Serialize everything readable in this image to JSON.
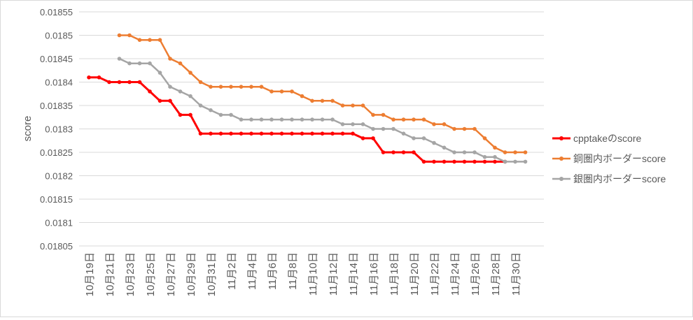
{
  "chart_data": {
    "type": "line",
    "title": "",
    "xlabel": "",
    "ylabel": "score",
    "ylim": [
      0.01805,
      0.01855
    ],
    "yticks": [
      "0.01805",
      "0.0181",
      "0.01815",
      "0.0182",
      "0.01825",
      "0.0183",
      "0.01835",
      "0.0184",
      "0.01845",
      "0.0185",
      "0.01855"
    ],
    "x": [
      "10月19日",
      "10月20日",
      "10月21日",
      "10月22日",
      "10月23日",
      "10月24日",
      "10月25日",
      "10月26日",
      "10月27日",
      "10月28日",
      "10月29日",
      "10月30日",
      "10月31日",
      "11月1日",
      "11月2日",
      "11月3日",
      "11月4日",
      "11月5日",
      "11月6日",
      "11月7日",
      "11月8日",
      "11月9日",
      "11月10日",
      "11月11日",
      "11月12日",
      "11月13日",
      "11月14日",
      "11月15日",
      "11月16日",
      "11月17日",
      "11月18日",
      "11月19日",
      "11月20日",
      "11月21日",
      "11月22日",
      "11月23日",
      "11月24日",
      "11月25日",
      "11月26日",
      "11月27日",
      "11月28日",
      "11月29日",
      "11月30日",
      "12月1日"
    ],
    "xtick_labels": [
      "10月19日",
      "10月21日",
      "10月23日",
      "10月25日",
      "10月27日",
      "10月29日",
      "10月31日",
      "11月2日",
      "11月4日",
      "11月6日",
      "11月8日",
      "11月10日",
      "11月12日",
      "11月14日",
      "11月16日",
      "11月18日",
      "11月20日",
      "11月22日",
      "11月24日",
      "11月26日",
      "11月28日",
      "11月30日"
    ],
    "grid": "horizontal",
    "legend": "right",
    "series": [
      {
        "name": "cpptakeのscore",
        "color": "#ff0000",
        "values": [
          0.01841,
          0.01841,
          0.0184,
          0.0184,
          0.0184,
          0.0184,
          0.01838,
          0.01836,
          0.01836,
          0.01833,
          0.01833,
          0.01829,
          0.01829,
          0.01829,
          0.01829,
          0.01829,
          0.01829,
          0.01829,
          0.01829,
          0.01829,
          0.01829,
          0.01829,
          0.01829,
          0.01829,
          0.01829,
          0.01829,
          0.01829,
          0.01828,
          0.01828,
          0.01825,
          0.01825,
          0.01825,
          0.01825,
          0.01823,
          0.01823,
          0.01823,
          0.01823,
          0.01823,
          0.01823,
          0.01823,
          0.01823,
          0.01823,
          null,
          null
        ]
      },
      {
        "name": "銅圏内ボーダーscore",
        "color": "#ed7d31",
        "values": [
          null,
          null,
          null,
          0.0185,
          0.0185,
          0.01849,
          0.01849,
          0.01849,
          0.01845,
          0.01844,
          0.01842,
          0.0184,
          0.01839,
          0.01839,
          0.01839,
          0.01839,
          0.01839,
          0.01839,
          0.01838,
          0.01838,
          0.01838,
          0.01837,
          0.01836,
          0.01836,
          0.01836,
          0.01835,
          0.01835,
          0.01835,
          0.01833,
          0.01833,
          0.01832,
          0.01832,
          0.01832,
          0.01832,
          0.01831,
          0.01831,
          0.0183,
          0.0183,
          0.0183,
          0.01828,
          0.01826,
          0.01825,
          0.01825,
          0.01825
        ]
      },
      {
        "name": "銀圏内ボーダーscore",
        "color": "#a5a5a5",
        "values": [
          null,
          null,
          null,
          0.01845,
          0.01844,
          0.01844,
          0.01844,
          0.01842,
          0.01839,
          0.01838,
          0.01837,
          0.01835,
          0.01834,
          0.01833,
          0.01833,
          0.01832,
          0.01832,
          0.01832,
          0.01832,
          0.01832,
          0.01832,
          0.01832,
          0.01832,
          0.01832,
          0.01832,
          0.01831,
          0.01831,
          0.01831,
          0.0183,
          0.0183,
          0.0183,
          0.01829,
          0.01828,
          0.01828,
          0.01827,
          0.01826,
          0.01825,
          0.01825,
          0.01825,
          0.01824,
          0.01824,
          0.01823,
          0.01823,
          0.01823
        ]
      }
    ]
  }
}
